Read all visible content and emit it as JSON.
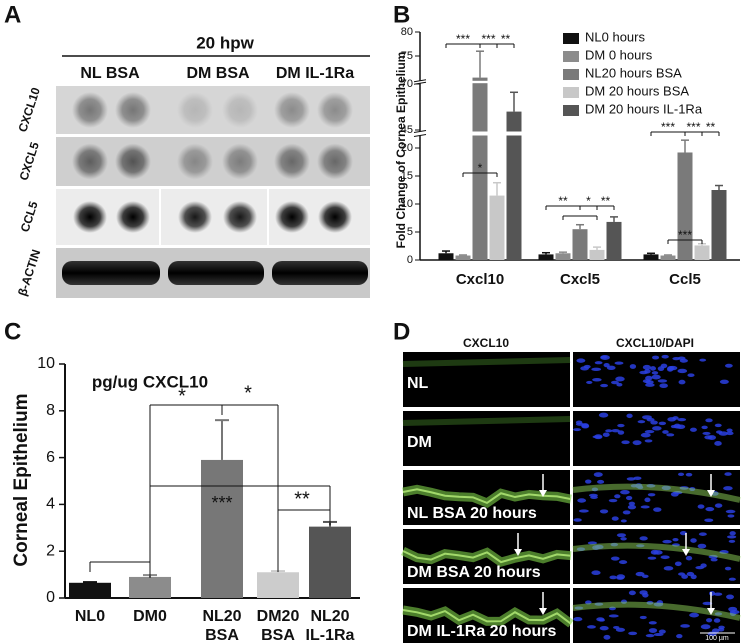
{
  "panel_labels": [
    "A",
    "B",
    "C",
    "D"
  ],
  "blot": {
    "header": "20 hpw",
    "groups": [
      "NL BSA",
      "DM BSA",
      "DM IL-1Ra"
    ],
    "rows": [
      "CXCL10",
      "CXCL5",
      "CCL5",
      "β-ACTIN"
    ]
  },
  "chart_data": [
    {
      "type": "bar",
      "ylabel": "Fold Change of Cornea Epithelium",
      "categories": [
        "Cxcl10",
        "Cxcl5",
        "Ccl5"
      ],
      "series": [
        {
          "name": "NL0 hours",
          "color": "#111111",
          "values": [
            1.2,
            1.0,
            1.0
          ],
          "errors": [
            0.4,
            0.3,
            0.2
          ]
        },
        {
          "name": "DM 0 hours",
          "color": "#8c8c8c",
          "values": [
            0.8,
            1.2,
            0.8
          ],
          "errors": [
            0.1,
            0.2,
            0.1
          ]
        },
        {
          "name": "NL20 hours BSA",
          "color": "#7a7a7a",
          "values": [
            70.5,
            5.5,
            19.2
          ],
          "errors": [
            5.5,
            0.8,
            2.2
          ]
        },
        {
          "name": "DM 20 hours BSA",
          "color": "#c8c8c8",
          "values": [
            11.5,
            1.8,
            2.6
          ],
          "errors": [
            2.3,
            0.5,
            0.3
          ]
        },
        {
          "name": "DM 20 hours IL-1Ra",
          "color": "#555555",
          "values": [
            55,
            6.8,
            12.5
          ],
          "errors": [
            10.5,
            0.9,
            0.8
          ]
        }
      ],
      "y_segments": [
        {
          "ylim": [
            0,
            22
          ],
          "yticks": [
            0,
            5,
            10,
            15,
            20
          ]
        },
        {
          "ylim": [
            45,
            70
          ],
          "yticks": [
            45
          ]
        },
        {
          "ylim": [
            70,
            80
          ],
          "yticks": [
            70,
            75,
            80
          ]
        }
      ],
      "annotations": [
        "***",
        "***",
        "**",
        "*",
        "**",
        "*",
        "**",
        "***",
        "***",
        "**",
        "***"
      ]
    },
    {
      "type": "bar",
      "title": "pg/ug CXCL10",
      "ylabel": "Corneal Epithelium",
      "categories": [
        [
          "NL0"
        ],
        [
          "DM0"
        ],
        [
          "NL20",
          "BSA"
        ],
        [
          "DM20",
          "BSA"
        ],
        [
          "NL20",
          "IL-1Ra"
        ]
      ],
      "values": [
        0.65,
        0.9,
        5.9,
        1.1,
        3.05
      ],
      "errors": [
        0.03,
        0.08,
        1.7,
        0.05,
        0.2
      ],
      "colors": [
        "#111111",
        "#8c8c8c",
        "#777777",
        "#cccccc",
        "#555555"
      ],
      "ylim": [
        0,
        10
      ],
      "yticks": [
        0,
        2,
        4,
        6,
        8,
        10
      ],
      "annotations": [
        "*",
        "*",
        "***",
        "**"
      ]
    }
  ],
  "micrographs": {
    "columns": [
      "CXCL10",
      "CXCL10/DAPI"
    ],
    "rows": [
      "NL",
      "DM",
      "NL BSA 20 hours",
      "DM BSA 20 hours",
      "DM IL-1Ra 20 hours"
    ],
    "scale_bar": "100 µm"
  }
}
